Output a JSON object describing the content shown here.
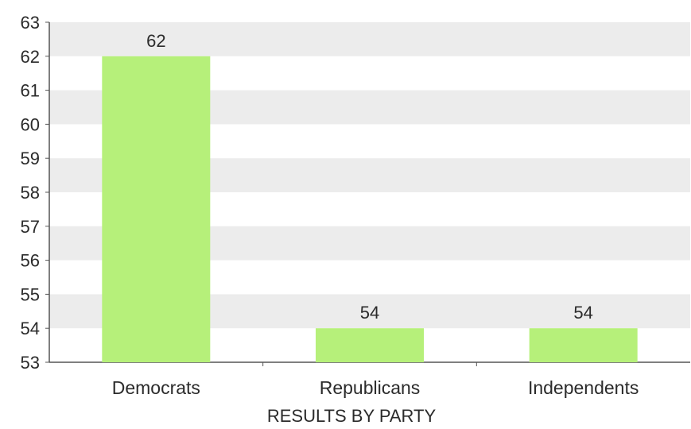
{
  "chart_data": {
    "type": "bar",
    "title": "",
    "xlabel": "RESULTS BY PARTY",
    "ylabel": "",
    "categories": [
      "Democrats",
      "Republicans",
      "Independents"
    ],
    "values": [
      62,
      54,
      54
    ],
    "data_labels": [
      "62",
      "54",
      "54"
    ],
    "ylim": [
      53,
      63
    ],
    "yticks": [
      53,
      54,
      55,
      56,
      57,
      58,
      59,
      60,
      61,
      62,
      63
    ],
    "grid": "alternating horizontal bands",
    "legend": "none",
    "colors": {
      "bar": "#b6f07a",
      "band": "#ececec",
      "axis": "#555555",
      "text": "#2b2b2b"
    }
  }
}
